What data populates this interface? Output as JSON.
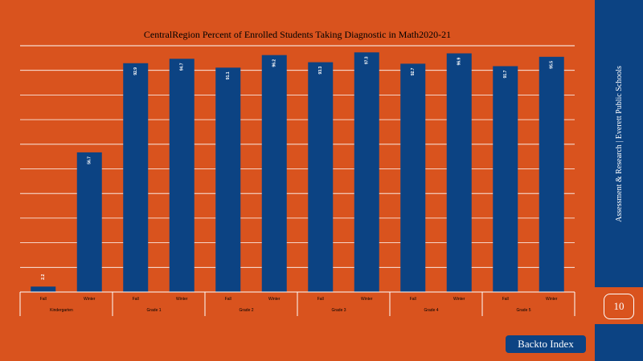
{
  "chart_data": {
    "type": "bar",
    "title": "CentralRegion Percent of Enrolled Students Taking Diagnostic in Math2020-21",
    "ylim": [
      0,
      100
    ],
    "grid": true,
    "categories": [
      {
        "group": "Kindergarten",
        "bars": [
          {
            "label": "Fall",
            "value": 2.2,
            "value_label": "2.2"
          },
          {
            "label": "Winter",
            "value": 56.7,
            "value_label": "56.7"
          }
        ]
      },
      {
        "group": "Grade 1",
        "bars": [
          {
            "label": "Fall",
            "value": 92.9,
            "value_label": "92.9"
          },
          {
            "label": "Winter",
            "value": 94.7,
            "value_label": "94.7"
          }
        ]
      },
      {
        "group": "Grade 2",
        "bars": [
          {
            "label": "Fall",
            "value": 91.1,
            "value_label": "91.1"
          },
          {
            "label": "Winter",
            "value": 96.2,
            "value_label": "96.2"
          }
        ]
      },
      {
        "group": "Grade 3",
        "bars": [
          {
            "label": "Fall",
            "value": 93.3,
            "value_label": "93.3"
          },
          {
            "label": "Winter",
            "value": 97.3,
            "value_label": "97.3"
          }
        ]
      },
      {
        "group": "Grade 4",
        "bars": [
          {
            "label": "Fall",
            "value": 92.7,
            "value_label": "92.7"
          },
          {
            "label": "Winter",
            "value": 96.9,
            "value_label": "96.9"
          }
        ]
      },
      {
        "group": "Grade 5",
        "bars": [
          {
            "label": "Fall",
            "value": 91.7,
            "value_label": "91.7"
          },
          {
            "label": "Winter",
            "value": 95.5,
            "value_label": "95.5"
          }
        ]
      }
    ]
  },
  "sidebar": {
    "text": "Assessment & Research | Everett Public Schools"
  },
  "page_number": "10",
  "back_button": {
    "label": "Backto Index"
  },
  "colors": {
    "background": "#d9531e",
    "bar": "#0c4383",
    "text": "#ffffff"
  }
}
